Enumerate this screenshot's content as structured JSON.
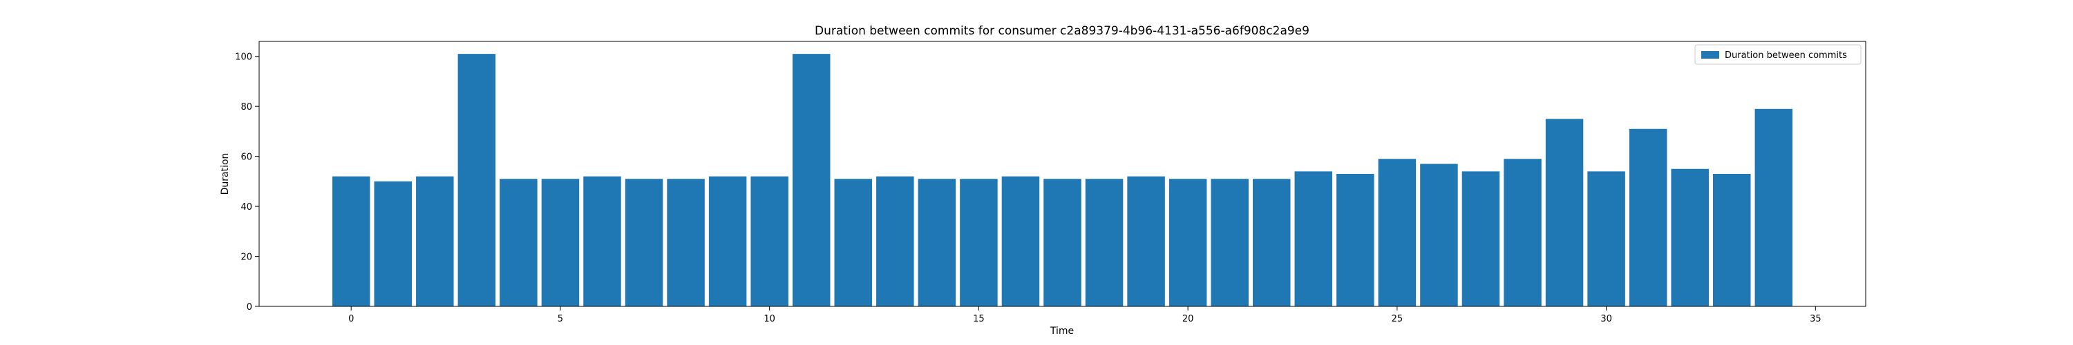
{
  "chart_data": {
    "type": "bar",
    "title": "Duration between commits for consumer c2a89379-4b96-4131-a556-a6f908c2a9e9",
    "xlabel": "Time",
    "ylabel": "Duration",
    "xlim": [
      -2.2,
      36.2
    ],
    "ylim": [
      0,
      106
    ],
    "xticks": [
      0,
      5,
      10,
      15,
      20,
      25,
      30,
      35
    ],
    "yticks": [
      0,
      20,
      40,
      60,
      80,
      100
    ],
    "grid": false,
    "legend_position": "top-right",
    "bar_color": "#1f77b4",
    "series": [
      {
        "name": "Duration between commits",
        "x": [
          0,
          1,
          2,
          3,
          4,
          5,
          6,
          7,
          8,
          9,
          10,
          11,
          12,
          13,
          14,
          15,
          16,
          17,
          18,
          19,
          20,
          21,
          22,
          23,
          24,
          25,
          26,
          27,
          28,
          29,
          30,
          31,
          32,
          33,
          34
        ],
        "values": [
          52,
          50,
          52,
          101,
          51,
          51,
          52,
          51,
          51,
          52,
          52,
          101,
          51,
          52,
          51,
          51,
          52,
          51,
          51,
          52,
          51,
          51,
          51,
          54,
          53,
          59,
          57,
          54,
          59,
          75,
          54,
          71,
          55,
          53,
          79
        ]
      }
    ]
  }
}
